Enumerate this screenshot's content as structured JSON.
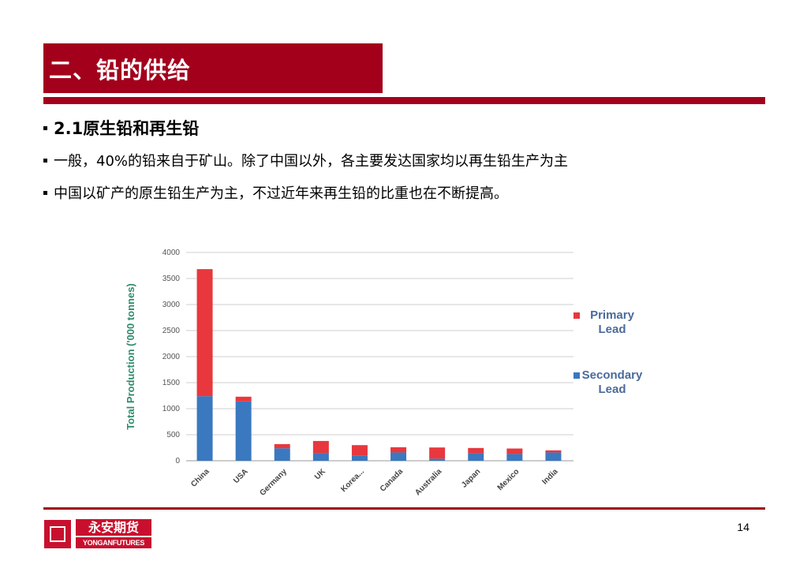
{
  "slide": {
    "title": "二、铅的供给",
    "page_number": "14"
  },
  "bullets": [
    "2.1原生铅和再生铅",
    "一般，40%的铅来自于矿山。除了中国以外，各主要发达国家均以再生铅生产为主",
    "中国以矿产的原生铅生产为主，不过近年来再生铅的比重也在不断提高。"
  ],
  "logo": {
    "name": "永安期货",
    "english": "YONGANFUTURES"
  },
  "colors": {
    "brand": "#a3001c",
    "primary_lead": "#e8383d",
    "secondary_lead": "#3a78c0",
    "axis_label": "#2e8b6e"
  },
  "chart_data": {
    "type": "bar",
    "stacked": true,
    "categories": [
      "China",
      "USA",
      "Germany",
      "UK",
      "Korea...",
      "Canada",
      "Australia",
      "Japan",
      "Mexico",
      "India"
    ],
    "series": [
      {
        "name": "Secondary Lead",
        "values": [
          1240,
          1140,
          240,
          150,
          95,
          160,
          40,
          150,
          130,
          160
        ]
      },
      {
        "name": "Primary Lead",
        "values": [
          2440,
          90,
          80,
          230,
          205,
          100,
          215,
          95,
          105,
          40
        ]
      }
    ],
    "ylabel": "Total Production ('000 tonnes)",
    "xlabel": "",
    "ylim": [
      0,
      4000
    ],
    "yticks": [
      0,
      500,
      1000,
      1500,
      2000,
      2500,
      3000,
      3500,
      4000
    ],
    "grid": true,
    "legend_position": "right",
    "legend": [
      {
        "label": [
          "Primary",
          "Lead"
        ],
        "color": "#e8383d"
      },
      {
        "label": [
          "Secondary",
          "Lead"
        ],
        "color": "#3a78c0"
      }
    ]
  }
}
